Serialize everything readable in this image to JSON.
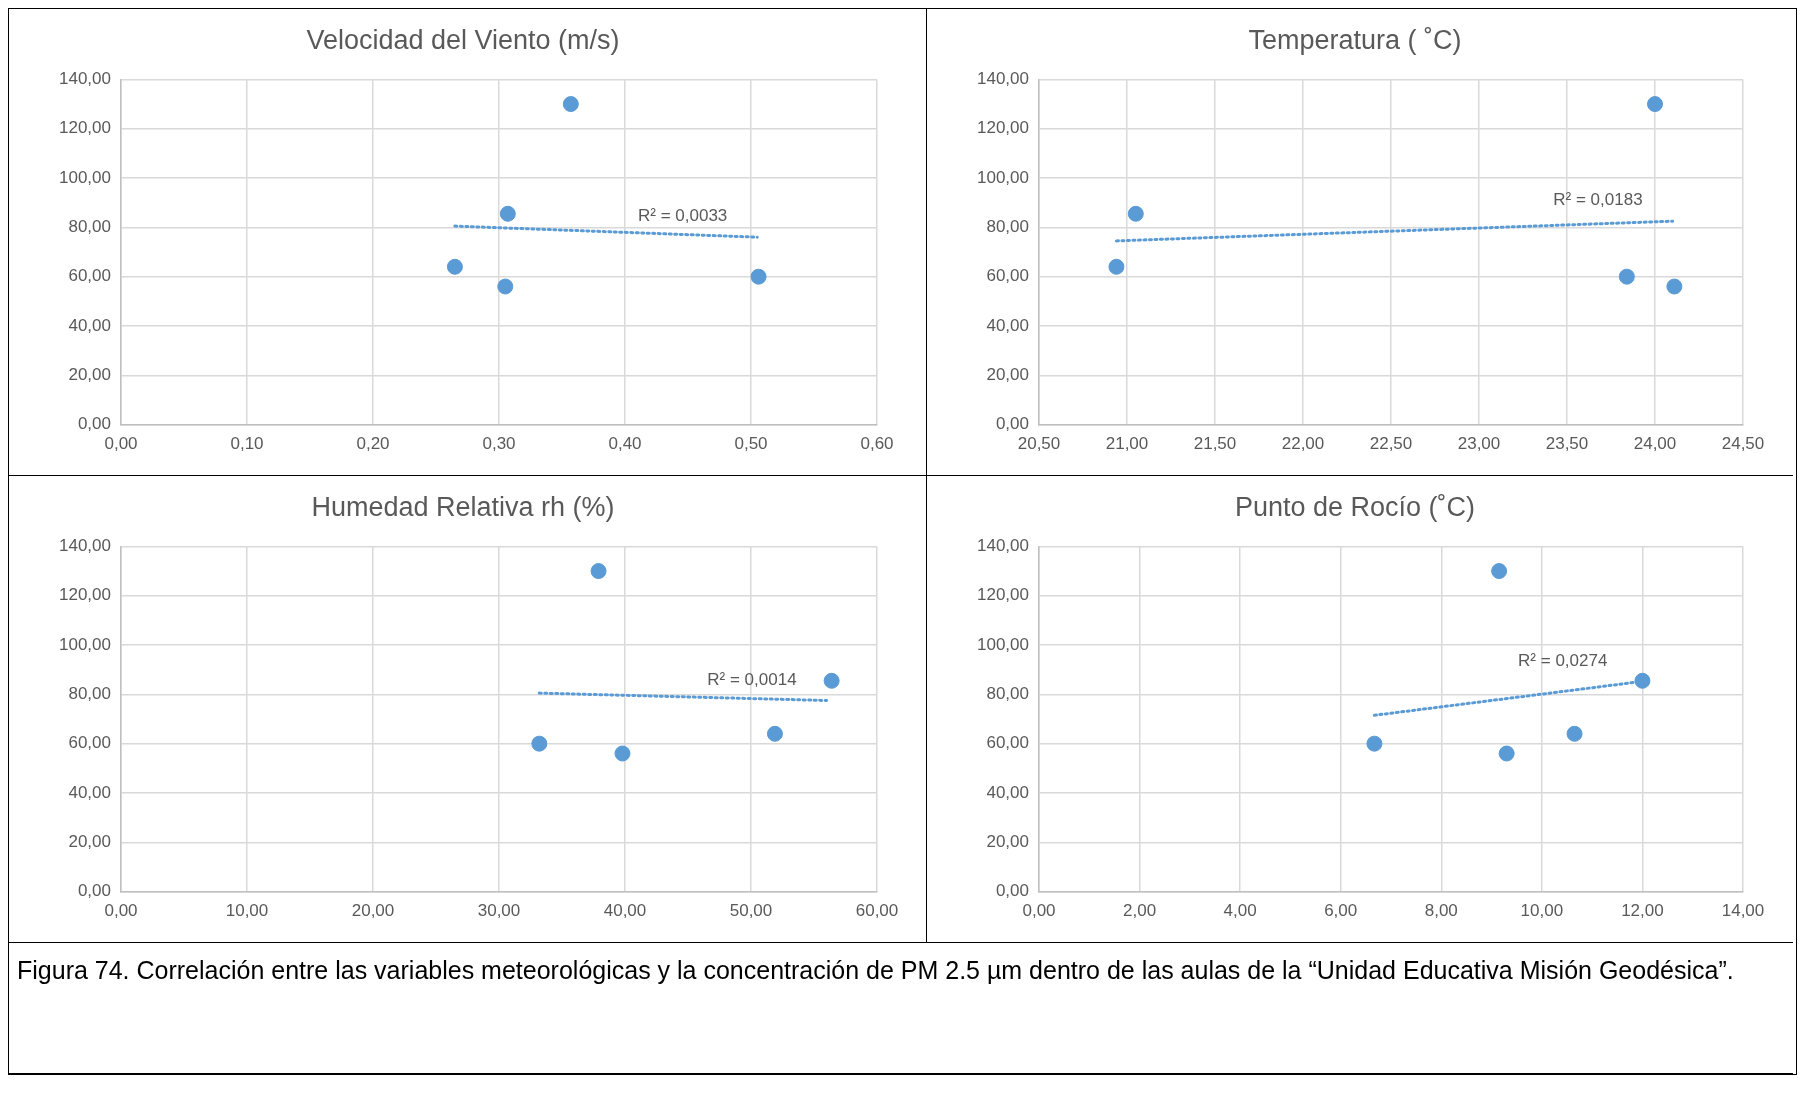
{
  "chart_data": [
    {
      "type": "scatter",
      "title": "Velocidad del Viento (m/s)",
      "grid": true,
      "xlim": [
        0,
        0.6
      ],
      "xticks": [
        {
          "value": 0,
          "label": "0,00"
        },
        {
          "value": 0.1,
          "label": "0,10"
        },
        {
          "value": 0.2,
          "label": "0,20"
        },
        {
          "value": 0.3,
          "label": "0,30"
        },
        {
          "value": 0.4,
          "label": "0,40"
        },
        {
          "value": 0.5,
          "label": "0,50"
        },
        {
          "value": 0.6,
          "label": "0,60"
        }
      ],
      "ylim": [
        0,
        140
      ],
      "yticks": [
        {
          "value": 0,
          "label": "0,00"
        },
        {
          "value": 20,
          "label": "20,00"
        },
        {
          "value": 40,
          "label": "40,00"
        },
        {
          "value": 60,
          "label": "60,00"
        },
        {
          "value": 80,
          "label": "80,00"
        },
        {
          "value": 100,
          "label": "100,00"
        },
        {
          "value": 120,
          "label": "120,00"
        },
        {
          "value": 140,
          "label": "140,00"
        }
      ],
      "series": [
        {
          "type": "scatter",
          "marker": "circle",
          "color": "#5b9bd5",
          "x": [
            0.265,
            0.305,
            0.307,
            0.357,
            0.506
          ],
          "values": [
            64,
            56,
            85.5,
            130,
            60
          ]
        },
        {
          "type": "line",
          "marker": "none",
          "line_style": "dotted",
          "color": "#5b9bd5",
          "x": [
            0.265,
            0.505
          ],
          "values": [
            80.5,
            76
          ]
        }
      ],
      "annotations": [
        "R² = 0,0033"
      ]
    },
    {
      "type": "scatter",
      "title": "Temperatura ( ˚C)",
      "grid": true,
      "xlim": [
        20.5,
        24.5
      ],
      "xticks": [
        {
          "value": 20.5,
          "label": "20,50"
        },
        {
          "value": 21,
          "label": "21,00"
        },
        {
          "value": 21.5,
          "label": "21,50"
        },
        {
          "value": 22,
          "label": "22,00"
        },
        {
          "value": 22.5,
          "label": "22,50"
        },
        {
          "value": 23,
          "label": "23,00"
        },
        {
          "value": 23.5,
          "label": "23,50"
        },
        {
          "value": 24,
          "label": "24,00"
        },
        {
          "value": 24.5,
          "label": "24,50"
        }
      ],
      "ylim": [
        0,
        140
      ],
      "yticks": [
        {
          "value": 0,
          "label": "0,00"
        },
        {
          "value": 20,
          "label": "20,00"
        },
        {
          "value": 40,
          "label": "40,00"
        },
        {
          "value": 60,
          "label": "60,00"
        },
        {
          "value": 80,
          "label": "80,00"
        },
        {
          "value": 100,
          "label": "100,00"
        },
        {
          "value": 120,
          "label": "120,00"
        },
        {
          "value": 140,
          "label": "140,00"
        }
      ],
      "series": [
        {
          "type": "scatter",
          "marker": "circle",
          "color": "#5b9bd5",
          "x": [
            20.94,
            21.05,
            23.84,
            24.0,
            24.11
          ],
          "values": [
            64,
            85.5,
            60,
            130,
            56
          ]
        },
        {
          "type": "line",
          "marker": "none",
          "line_style": "dotted",
          "color": "#5b9bd5",
          "x": [
            20.94,
            24.1
          ],
          "values": [
            74.5,
            82.5
          ]
        }
      ],
      "annotations": [
        "R² = 0,0183"
      ]
    },
    {
      "type": "scatter",
      "title": "Humedad Relativa rh (%)",
      "grid": true,
      "xlim": [
        0,
        60
      ],
      "xticks": [
        {
          "value": 0,
          "label": "0,00"
        },
        {
          "value": 10,
          "label": "10,00"
        },
        {
          "value": 20,
          "label": "20,00"
        },
        {
          "value": 30,
          "label": "30,00"
        },
        {
          "value": 40,
          "label": "40,00"
        },
        {
          "value": 50,
          "label": "50,00"
        },
        {
          "value": 60,
          "label": "60,00"
        }
      ],
      "ylim": [
        0,
        140
      ],
      "yticks": [
        {
          "value": 0,
          "label": "0,00"
        },
        {
          "value": 20,
          "label": "20,00"
        },
        {
          "value": 40,
          "label": "40,00"
        },
        {
          "value": 60,
          "label": "60,00"
        },
        {
          "value": 80,
          "label": "80,00"
        },
        {
          "value": 100,
          "label": "100,00"
        },
        {
          "value": 120,
          "label": "120,00"
        },
        {
          "value": 140,
          "label": "140,00"
        }
      ],
      "series": [
        {
          "type": "scatter",
          "marker": "circle",
          "color": "#5b9bd5",
          "x": [
            33.2,
            37.9,
            39.8,
            51.9,
            56.4
          ],
          "values": [
            60,
            130,
            56,
            64,
            85.5
          ]
        },
        {
          "type": "line",
          "marker": "none",
          "line_style": "dotted",
          "color": "#5b9bd5",
          "x": [
            33.2,
            56
          ],
          "values": [
            80.5,
            77.5
          ]
        }
      ],
      "annotations": [
        "R² = 0,0014"
      ]
    },
    {
      "type": "scatter",
      "title": "Punto de Rocío (˚C)",
      "grid": true,
      "xlim": [
        0,
        14
      ],
      "xticks": [
        {
          "value": 0,
          "label": "0,00"
        },
        {
          "value": 2,
          "label": "2,00"
        },
        {
          "value": 4,
          "label": "4,00"
        },
        {
          "value": 6,
          "label": "6,00"
        },
        {
          "value": 8,
          "label": "8,00"
        },
        {
          "value": 10,
          "label": "10,00"
        },
        {
          "value": 12,
          "label": "12,00"
        },
        {
          "value": 14,
          "label": "14,00"
        }
      ],
      "ylim": [
        0,
        140
      ],
      "yticks": [
        {
          "value": 0,
          "label": "0,00"
        },
        {
          "value": 20,
          "label": "20,00"
        },
        {
          "value": 40,
          "label": "40,00"
        },
        {
          "value": 60,
          "label": "60,00"
        },
        {
          "value": 80,
          "label": "80,00"
        },
        {
          "value": 100,
          "label": "100,00"
        },
        {
          "value": 120,
          "label": "120,00"
        },
        {
          "value": 140,
          "label": "140,00"
        }
      ],
      "series": [
        {
          "type": "scatter",
          "marker": "circle",
          "color": "#5b9bd5",
          "x": [
            6.67,
            9.15,
            9.3,
            10.65,
            12.0
          ],
          "values": [
            60,
            130,
            56,
            64,
            85.5
          ]
        },
        {
          "type": "line",
          "marker": "none",
          "line_style": "dotted",
          "color": "#5b9bd5",
          "x": [
            6.67,
            11.9
          ],
          "values": [
            71.5,
            85
          ]
        }
      ],
      "annotations": [
        "R² = 0,0274"
      ]
    },
    {
      "type": "other",
      "annotations": [
        "Figura 74. Correlación entre las variables meteorológicas y la concentración de PM 2.5 µm dentro de las aulas de la “Unidad Educativa Misión Geodésica”."
      ]
    }
  ]
}
